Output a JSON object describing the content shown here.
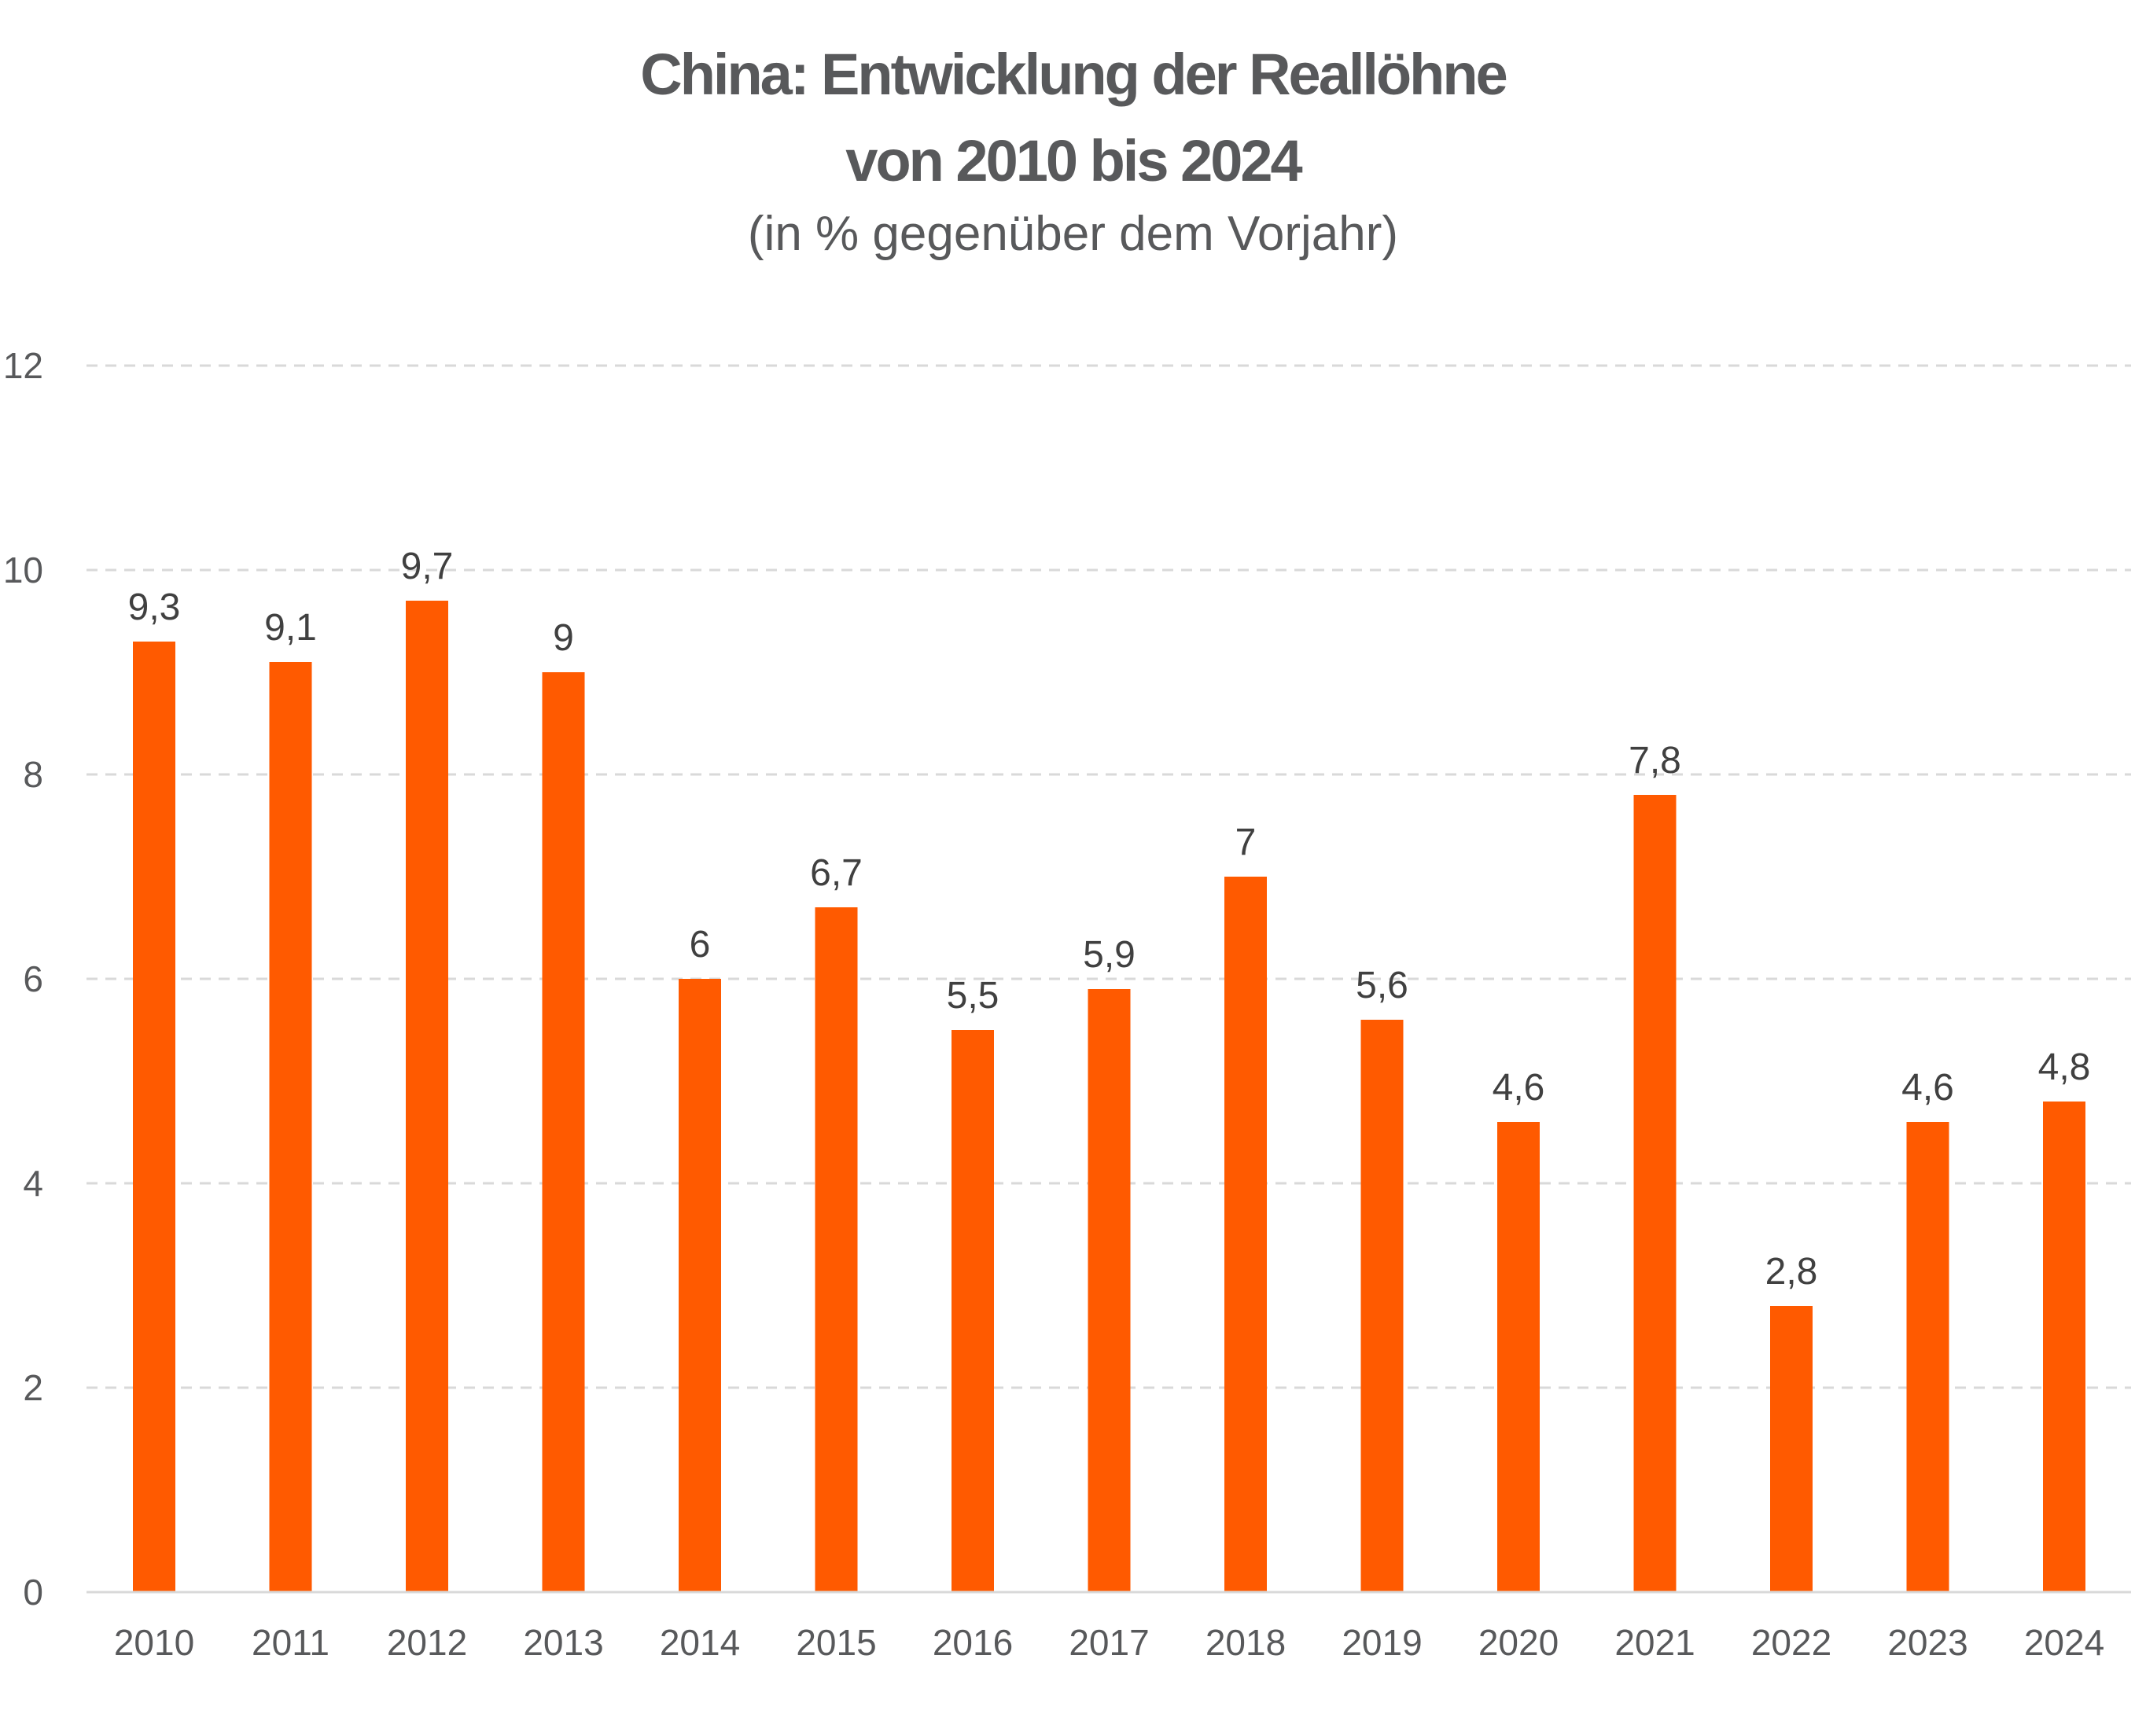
{
  "chart_data": {
    "type": "bar",
    "title_line1": "China: Entwicklung der Reallöhne",
    "title_line2": "von 2010 bis 2024",
    "subtitle": "(in % gegenüber dem Vorjahr)",
    "xlabel": "",
    "ylabel": "",
    "categories": [
      "2010",
      "2011",
      "2012",
      "2013",
      "2014",
      "2015",
      "2016",
      "2017",
      "2018",
      "2019",
      "2020",
      "2021",
      "2022",
      "2023",
      "2024"
    ],
    "values": [
      9.3,
      9.1,
      9.7,
      9,
      6,
      6.7,
      5.5,
      5.9,
      7,
      5.6,
      4.6,
      7.8,
      2.8,
      4.6,
      4.8
    ],
    "value_labels": [
      "9,3",
      "9,1",
      "9,7",
      "9",
      "6",
      "6,7",
      "5,5",
      "5,9",
      "7",
      "5,6",
      "4,6",
      "7,8",
      "2,8",
      "4,6",
      "4,8"
    ],
    "ylim": [
      0,
      12
    ],
    "yticks": [
      0,
      2,
      4,
      6,
      8,
      10,
      12
    ],
    "grid": true,
    "legend": "none",
    "bar_color": "#ff5a00",
    "grid_color": "#d9d9d9",
    "text_color": "#58595b"
  }
}
